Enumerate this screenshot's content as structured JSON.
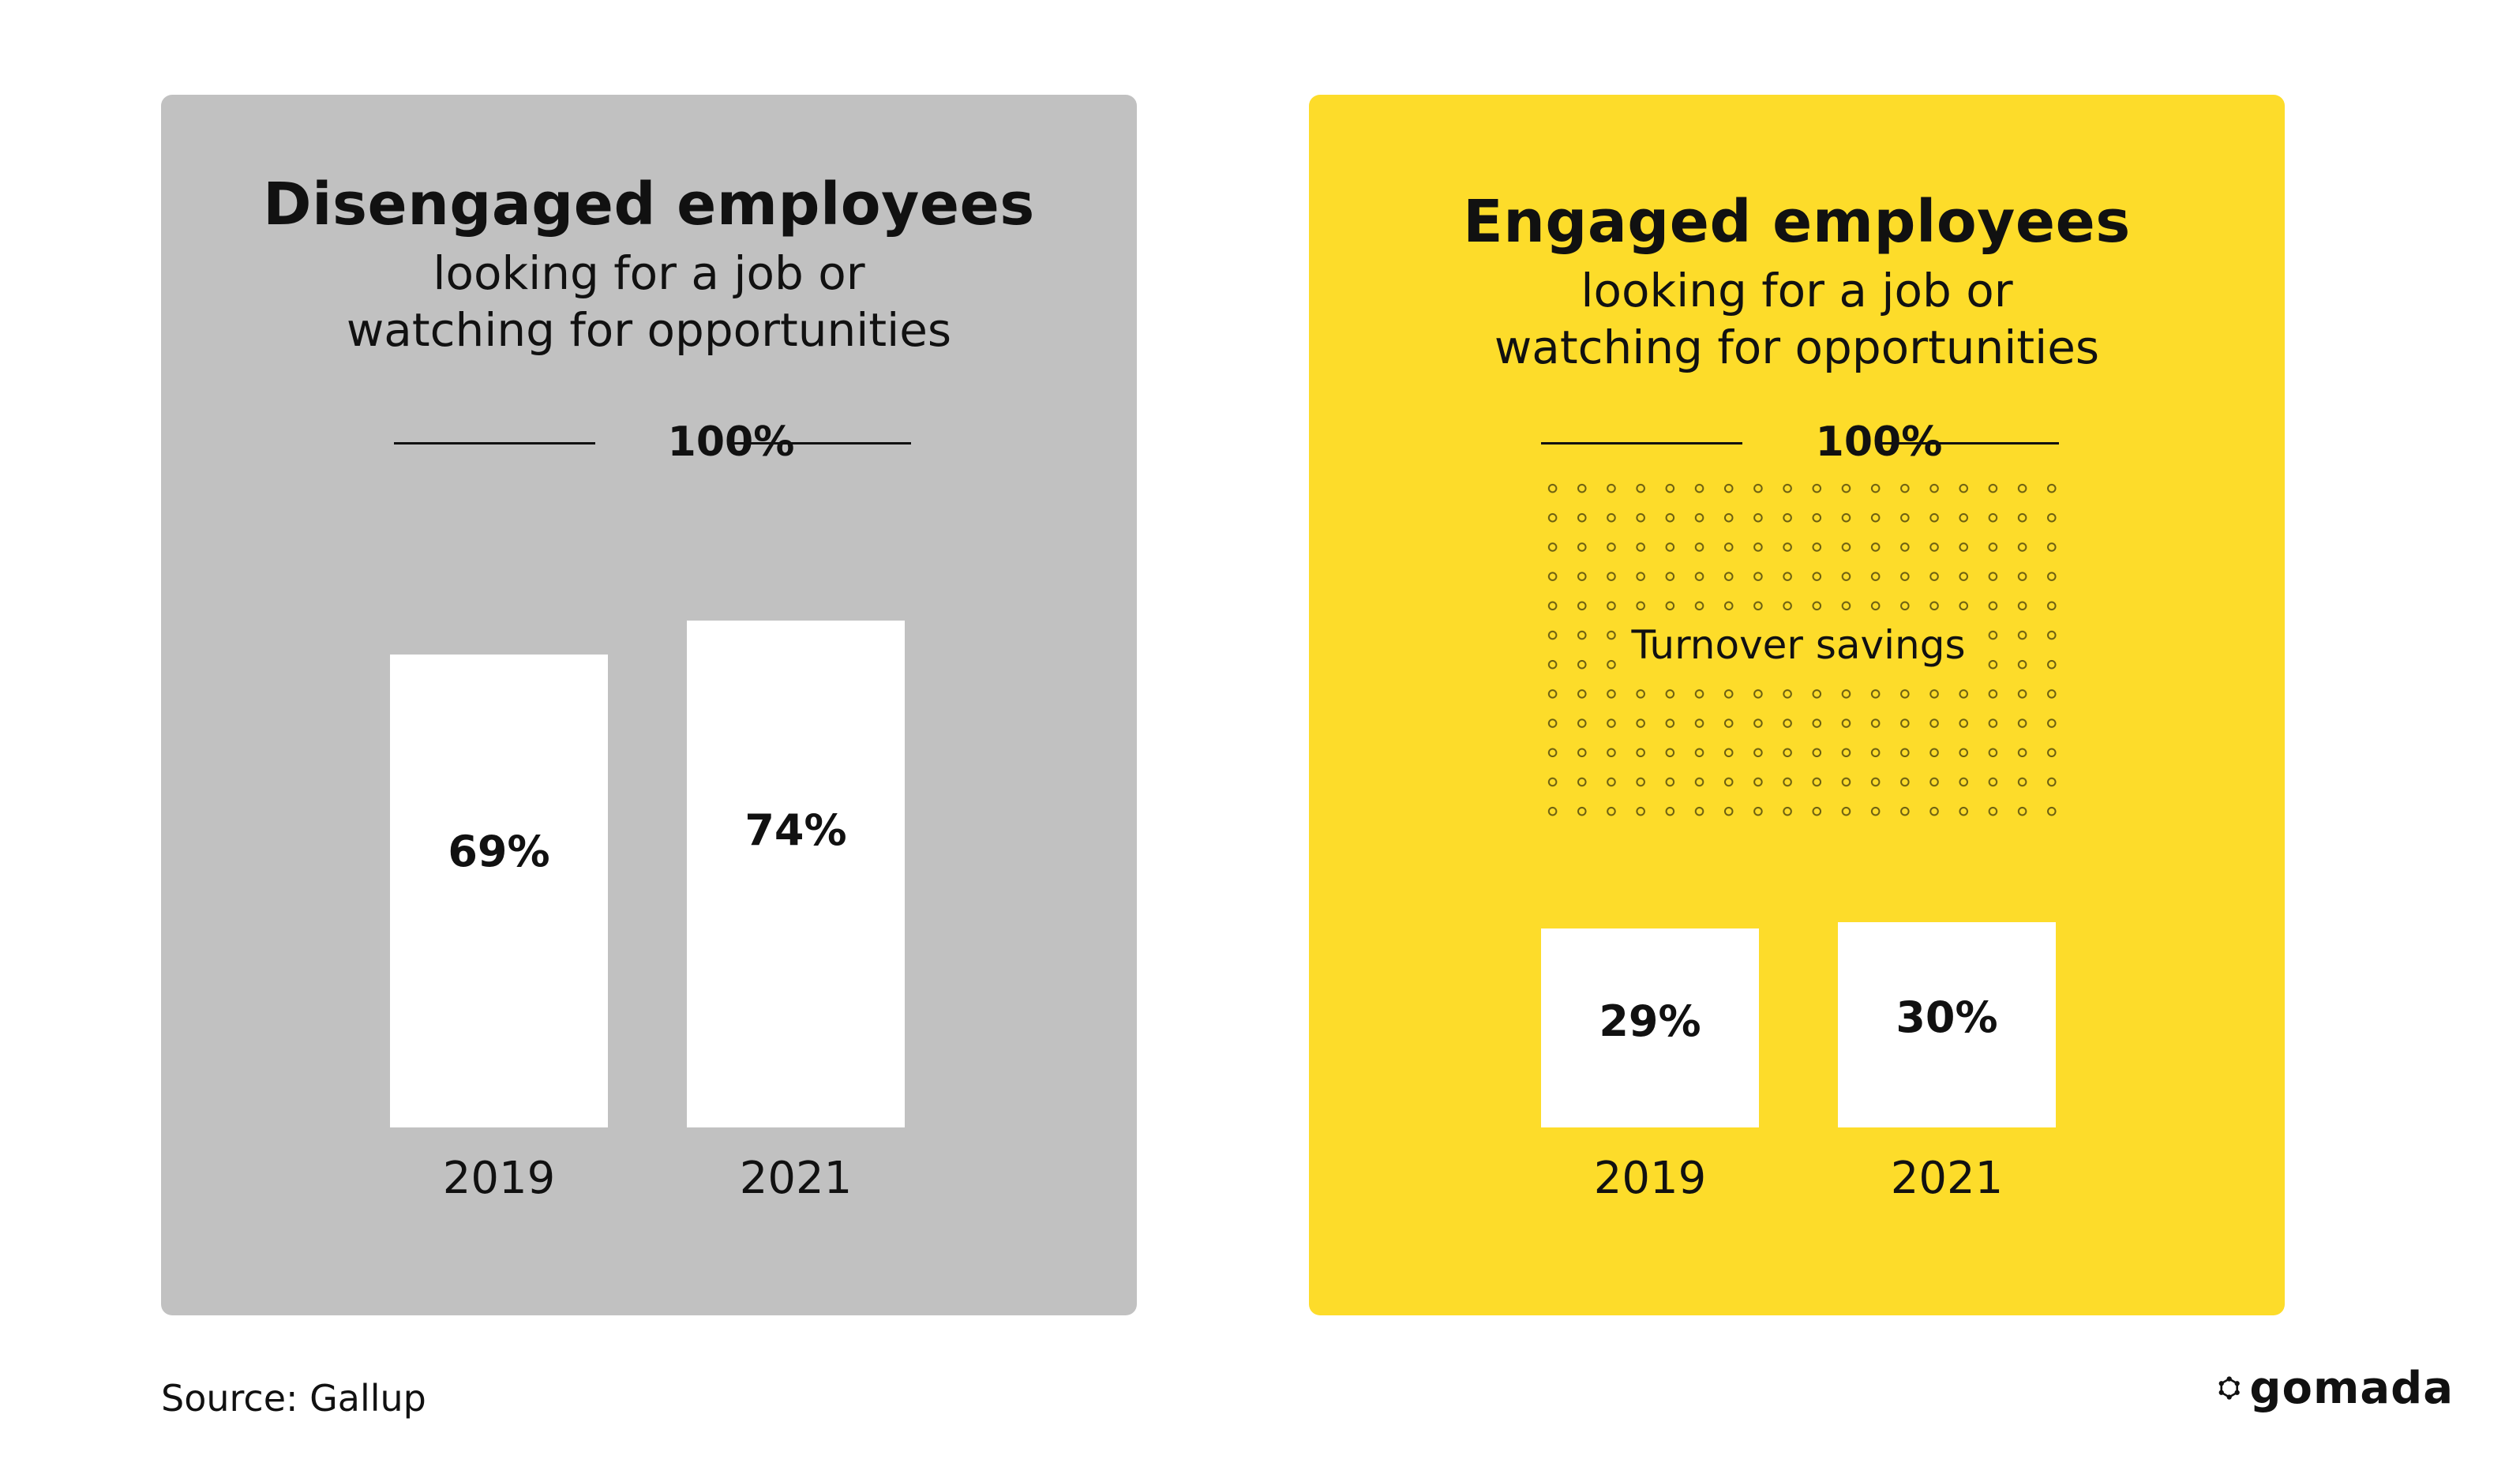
{
  "chart_data": [
    {
      "type": "bar",
      "title": "Disengaged employees",
      "subtitle": "looking for a job or watching for opportunities",
      "categories": [
        "2019",
        "2021"
      ],
      "values": [
        69,
        74
      ],
      "value_labels": [
        "69%",
        "74%"
      ],
      "ylim": [
        0,
        100
      ],
      "reference_line": {
        "value": 100,
        "label": "100%"
      },
      "background": "#c1c1c1",
      "bar_color": "#ffffff"
    },
    {
      "type": "bar",
      "title": "Engaged employees",
      "subtitle": "looking for a job or watching for opportunities",
      "categories": [
        "2019",
        "2021"
      ],
      "values": [
        29,
        30
      ],
      "value_labels": [
        "29%",
        "30%"
      ],
      "ylim": [
        0,
        100
      ],
      "reference_line": {
        "value": 100,
        "label": "100%"
      },
      "annotation": "Turnover savings",
      "background": "#fddc2a",
      "bar_color": "#ffffff"
    }
  ],
  "source": "Source: Gallup",
  "logo": {
    "text": "gomada",
    "icon": "gomada-hexagon-icon"
  },
  "colors": {
    "grey_panel": "#c1c1c1",
    "yellow_panel": "#fddc2a",
    "text": "#111111"
  }
}
